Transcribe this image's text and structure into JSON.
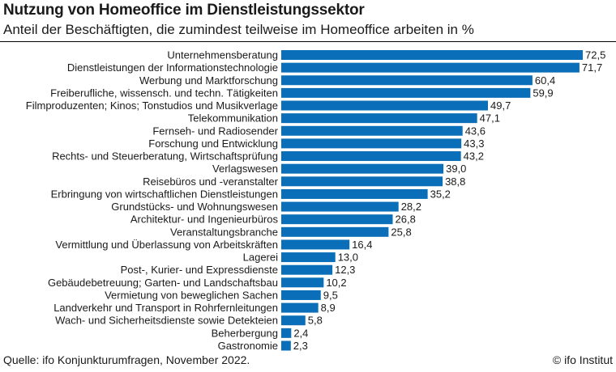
{
  "header": {
    "title": "Nutzung von Homeoffice im Dienstleistungssektor",
    "subtitle": "Anteil der Beschäftigten, die zumindest teilweise im Homeoffice arbeiten in %"
  },
  "footer": {
    "source": "Quelle: ifo Konjunkturumfragen, November 2022.",
    "credit": "© ifo Institut"
  },
  "colors": {
    "bar": "#0a6fb8",
    "text": "#1a1a1a"
  },
  "chart_data": {
    "type": "bar",
    "orientation": "horizontal",
    "title": "Nutzung von Homeoffice im Dienstleistungssektor",
    "subtitle": "Anteil der Beschäftigten, die zumindest teilweise im Homeoffice arbeiten in %",
    "categories": [
      "Unternehmensberatung",
      "Dienstleistungen der Informationstechnologie",
      "Werbung und Marktforschung",
      "Freiberufliche, wissensch. und techn. Tätigkeiten",
      "Filmproduzenten; Kinos; Tonstudios und Musikverlage",
      "Telekommunikation",
      "Fernseh- und Radiosender",
      "Forschung und Entwicklung",
      "Rechts- und Steuerberatung, Wirtschaftsprüfung",
      "Verlagswesen",
      "Reisebüros und -veranstalter",
      "Erbringung von wirtschaftlichen Dienstleistungen",
      "Grundstücks- und Wohnungswesen",
      "Architektur- und Ingenieurbüros",
      "Veranstaltungsbranche",
      "Vermittlung und Überlassung von Arbeitskräften",
      "Lagerei",
      "Post-, Kurier- und Expressdienste",
      "Gebäudebetreuung; Garten- und Landschaftsbau",
      "Vermietung von beweglichen Sachen",
      "Landverkehr und Transport in Rohrfernleitungen",
      "Wach- und Sicherheitsdienste sowie Detekteien",
      "Beherbergung",
      "Gastronomie"
    ],
    "values": [
      72.5,
      71.7,
      60.4,
      59.9,
      49.7,
      47.1,
      43.6,
      43.3,
      43.2,
      39.0,
      38.8,
      35.2,
      28.2,
      26.8,
      25.8,
      16.4,
      13.0,
      12.3,
      10.2,
      9.5,
      8.9,
      5.8,
      2.4,
      2.3
    ],
    "value_labels": [
      "72,5",
      "71,7",
      "60,4",
      "59,9",
      "49,7",
      "47,1",
      "43,6",
      "43,3",
      "43,2",
      "39,0",
      "38,8",
      "35,2",
      "28,2",
      "26,8",
      "25,8",
      "16,4",
      "13,0",
      "12,3",
      "10,2",
      "9,5",
      "8,9",
      "5,8",
      "2,4",
      "2,3"
    ],
    "xlim": [
      0,
      72.5
    ],
    "grid": false,
    "legend": "none"
  }
}
